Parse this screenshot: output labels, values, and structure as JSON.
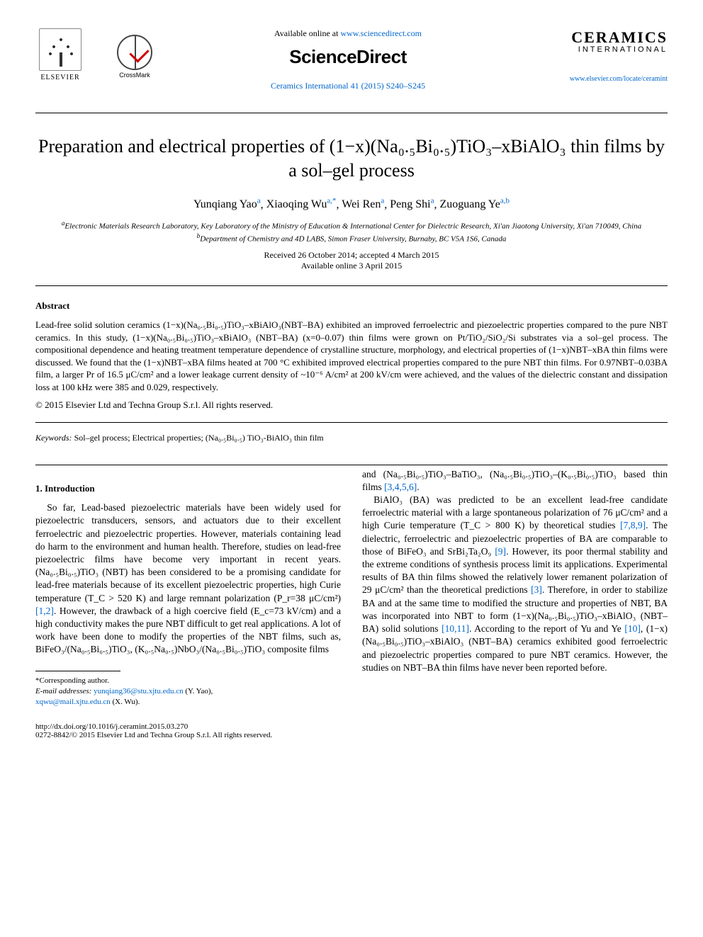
{
  "header": {
    "elsevier_label": "ELSEVIER",
    "crossmark_label": "CrossMark",
    "available_prefix": "Available online at ",
    "available_url": "www.sciencedirect.com",
    "sciencedirect": "ScienceDirect",
    "journal_ref": "Ceramics International 41 (2015) S240–S245",
    "ceramics": "CERAMICS",
    "ceramics_intl": "INTERNATIONAL",
    "ceramics_url": "www.elsevier.com/locate/ceramint"
  },
  "title": "Preparation and electrical properties of (1−x)(Na₀.₅Bi₀.₅)TiO₃–xBiAlO₃ thin films by a sol–gel process",
  "authors": [
    {
      "name": "Yunqiang Yao",
      "aff": "a"
    },
    {
      "name": "Xiaoqing Wu",
      "aff": "a,*"
    },
    {
      "name": "Wei Ren",
      "aff": "a"
    },
    {
      "name": "Peng Shi",
      "aff": "a"
    },
    {
      "name": "Zuoguang Ye",
      "aff": "a,b"
    }
  ],
  "affiliations": {
    "a": "Electronic Materials Research Laboratory, Key Laboratory of the Ministry of Education & International Center for Dielectric Research, Xi'an Jiaotong University, Xi'an 710049, China",
    "b": "Department of Chemistry and 4D LABS, Simon Fraser University, Burnaby, BC V5A 1S6, Canada"
  },
  "dates": {
    "received_accepted": "Received 26 October 2014; accepted 4 March 2015",
    "online": "Available online 3 April 2015"
  },
  "abstract": {
    "heading": "Abstract",
    "body": "Lead-free solid solution ceramics (1−x)(Na₀.₅Bi₀.₅)TiO₃–xBiAlO₃(NBT–BA) exhibited an improved ferroelectric and piezoelectric properties compared to the pure NBT ceramics. In this study, (1−x)(Na₀.₅Bi₀.₅)TiO₃–xBiAlO₃ (NBT–BA) (x=0–0.07) thin films were grown on Pt/TiO₂/SiO₂/Si substrates via a sol–gel process. The compositional dependence and heating treatment temperature dependence of crystalline structure, morphology, and electrical properties of (1−x)NBT–xBA thin films were discussed. We found that the (1−x)NBT–xBA films heated at 700 °C exhibited improved electrical properties compared to the pure NBT thin films. For 0.97NBT–0.03BA film, a larger Pr of 16.5 μC/cm² and a lower leakage current density of ~10⁻⁶ A/cm² at 200 kV/cm were achieved, and the values of the dielectric constant and dissipation loss at 100 kHz were 385 and 0.029, respectively.",
    "copyright": "© 2015 Elsevier Ltd and Techna Group S.r.l. All rights reserved."
  },
  "keywords_label": "Keywords:",
  "keywords": " Sol–gel process; Electrical properties; (Na₀.₅Bi₀.₅) TiO₃-BiAlO₃ thin film",
  "introduction": {
    "heading": "1. Introduction",
    "col1_p1_a": "So far, Lead-based piezoelectric materials have been widely used for piezoelectric transducers, sensors, and actuators due to their excellent ferroelectric and piezoelectric properties. However, materials containing lead do harm to the environment and human health. Therefore, studies on lead-free piezoelectric films have become very important in recent years. (Na₀.₅Bi₀.₅)TiO₃ (NBT) has been considered to be a promising candidate for lead-free materials because of its excellent piezoelectric properties, high Curie temperature (T_C > 520 K) and large remnant polarization (P_r=38 μC/cm²) ",
    "ref1": "[1,2]",
    "col1_p1_b": ". However, the drawback of a high coercive field (E_c=73 kV/cm) and a high conductivity makes the pure NBT difficult to get real applications. A lot of work have been done to modify the properties of the NBT films, such as, BiFeO₃/(Na₀.₅Bi₀.₅)TiO₃, (K₀.₅Na₀.₅)NbO₃/(Na₀.₅Bi₀.₅)TiO₃ composite films",
    "col2_p0_a": "and (Na₀.₅Bi₀.₅)TiO₃–BaTiO₃, (Na₀.₅Bi₀.₅)TiO₃–(K₀.₅Bi₀.₅)TiO₃ based thin films ",
    "ref2": "[3,4,5,6]",
    "col2_p0_b": ".",
    "col2_p1_a": "BiAlO₃ (BA) was predicted to be an excellent lead-free candidate ferroelectric material with a large spontaneous polarization of 76 μC/cm² and a high Curie temperature (T_C > 800 K) by theoretical studies ",
    "ref3": "[7,8,9]",
    "col2_p1_b": ". The dielectric, ferroelectric and piezoelectric properties of BA are comparable to those of BiFeO₃ and SrBi₂Ta₂O₉ ",
    "ref4": "[9]",
    "col2_p1_c": ". However, its poor thermal stability and the extreme conditions of synthesis process limit its applications. Experimental results of BA thin films showed the relatively lower remanent polarization of 29 μC/cm² than the theoretical predictions ",
    "ref5": "[3]",
    "col2_p1_d": ". Therefore, in order to stabilize BA and at the same time to modified the structure and properties of NBT, BA was incorporated into NBT to form (1−x)(Na₀.₅Bi₀.₅)TiO₃–xBiAlO₃ (NBT–BA) solid solutions ",
    "ref6": "[10,11]",
    "col2_p1_e": ". According to the report of Yu and Ye ",
    "ref7": "[10]",
    "col2_p1_f": ", (1−x)(Na₀.₅Bi₀.₅)TiO₃–xBiAlO₃ (NBT–BA) ceramics exhibited good ferroelectric and piezoelectric properties compared to pure NBT ceramics. However, the studies on NBT–BA thin films have never been reported before."
  },
  "footnote": {
    "corr": "*Corresponding author.",
    "email_label": "E-mail addresses: ",
    "email1": "yunqiang36@stu.xjtu.edu.cn",
    "email1_name": " (Y. Yao),",
    "email2": "xqwu@mail.xjtu.edu.cn",
    "email2_name": " (X. Wu)."
  },
  "doi": {
    "url": "http://dx.doi.org/10.1016/j.ceramint.2015.03.270",
    "issn": "0272-8842/© 2015 Elsevier Ltd and Techna Group S.r.l. All rights reserved."
  }
}
